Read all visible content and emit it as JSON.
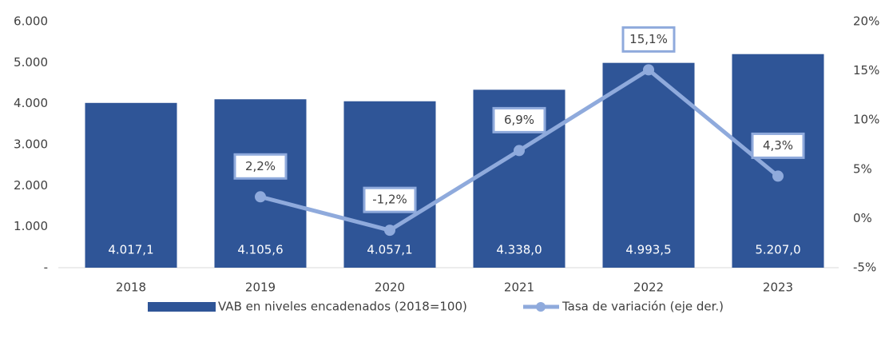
{
  "chart_data": {
    "type": "bar",
    "categories": [
      "2018",
      "2019",
      "2020",
      "2021",
      "2022",
      "2023"
    ],
    "series": [
      {
        "name": "VAB en niveles encadenados (2018=100)",
        "type": "bar",
        "color": "#2f5597",
        "values": [
          4017.1,
          4105.6,
          4057.1,
          4338.0,
          4993.5,
          5207.0
        ],
        "value_labels": [
          "4.017,1",
          "4.105,6",
          "4.057,1",
          "4.338,0",
          "4.993,5",
          "5.207,0"
        ]
      },
      {
        "name": "Tasa de variación (eje der.)",
        "type": "line",
        "axis": "y2",
        "color": "#8faadc",
        "values": [
          null,
          2.2,
          -1.2,
          6.9,
          15.1,
          4.3
        ],
        "value_labels": [
          null,
          "2,2%",
          "-1,2%",
          "6,9%",
          "15,1%",
          "4,3%"
        ]
      }
    ],
    "ylim": [
      0,
      6000
    ],
    "yticks": [
      {
        "value": 0,
        "label": "-"
      },
      {
        "value": 1000,
        "label": "1.000"
      },
      {
        "value": 2000,
        "label": "2.000"
      },
      {
        "value": 3000,
        "label": "3.000"
      },
      {
        "value": 4000,
        "label": "4.000"
      },
      {
        "value": 5000,
        "label": "5.000"
      },
      {
        "value": 6000,
        "label": "6.000"
      }
    ],
    "y2lim": [
      -5,
      20
    ],
    "y2ticks": [
      {
        "value": -5,
        "label": "-5%"
      },
      {
        "value": 0,
        "label": "0%"
      },
      {
        "value": 5,
        "label": "5%"
      },
      {
        "value": 10,
        "label": "10%"
      },
      {
        "value": 15,
        "label": "15%"
      },
      {
        "value": 20,
        "label": "20%"
      }
    ],
    "legend": "bottom"
  }
}
